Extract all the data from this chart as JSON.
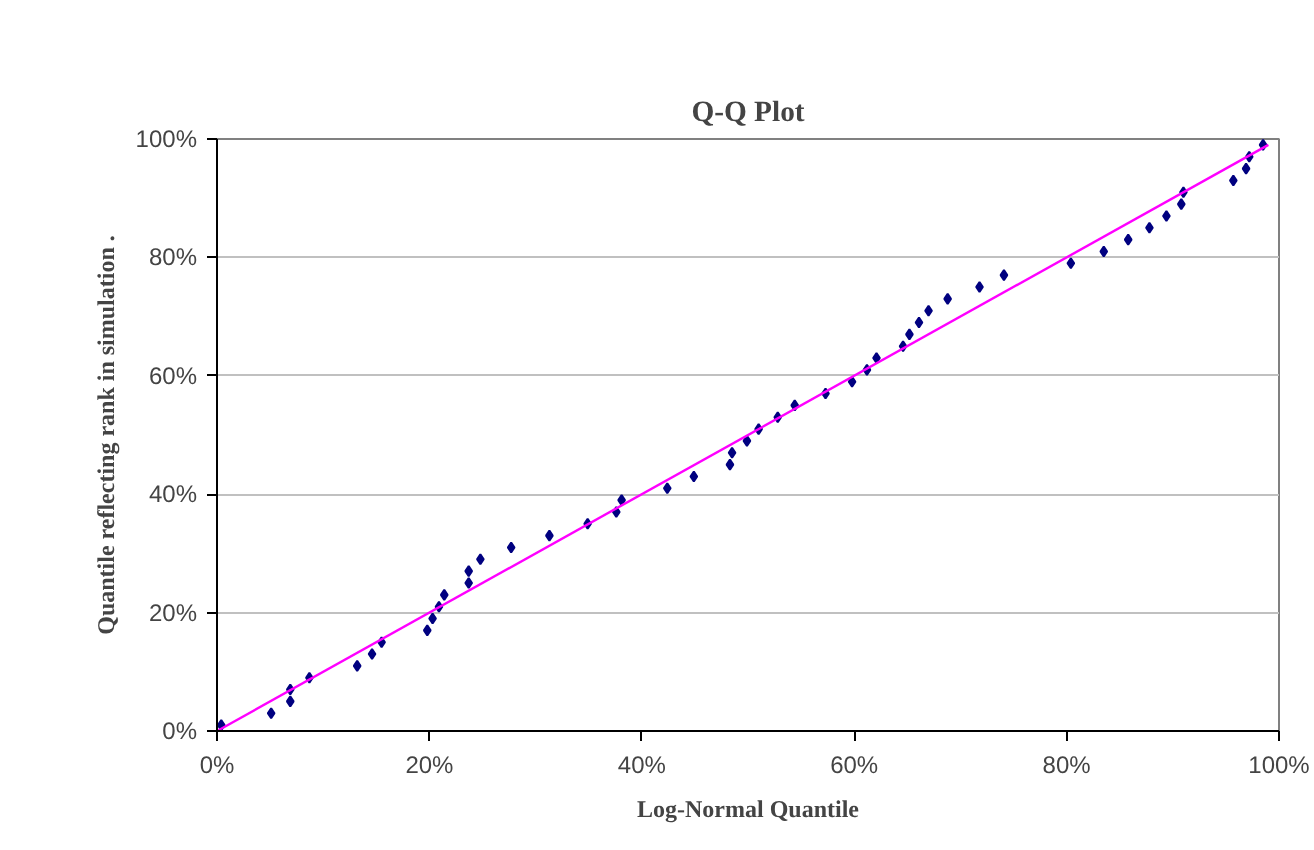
{
  "chart_data": {
    "type": "scatter",
    "title": "Q-Q Plot",
    "xlabel": "Log-Normal Quantile",
    "ylabel": "Quantile reflecting rank in simulation .",
    "series": [
      {
        "marker": "diamond",
        "color": "#000080",
        "x": [
          0.4,
          5.1,
          6.9,
          6.9,
          8.7,
          13.2,
          14.6,
          15.5,
          19.8,
          20.3,
          20.9,
          21.4,
          23.7,
          23.7,
          24.8,
          27.7,
          31.3,
          34.9,
          37.6,
          38.1,
          42.4,
          44.9,
          48.3,
          48.5,
          49.9,
          51.0,
          52.8,
          54.4,
          57.3,
          59.8,
          61.2,
          62.1,
          64.6,
          65.2,
          66.1,
          67.0,
          68.8,
          71.8,
          74.1,
          80.4,
          83.5,
          85.8,
          87.8,
          89.4,
          90.8,
          91.0,
          95.7,
          96.9,
          97.2,
          98.5
        ],
        "values": [
          1,
          3,
          5,
          7,
          9,
          11,
          13,
          15,
          17,
          19,
          21,
          23,
          25,
          27,
          29,
          31,
          33,
          35,
          37,
          39,
          41,
          43,
          45,
          47,
          49,
          51,
          53,
          55,
          57,
          59,
          61,
          63,
          65,
          67,
          69,
          71,
          73,
          75,
          77,
          79,
          81,
          83,
          85,
          87,
          89,
          91,
          93,
          95,
          97,
          99
        ]
      },
      {
        "type": "line",
        "marker": "none",
        "color": "#ff00ff",
        "x": [
          0,
          99
        ],
        "values": [
          0,
          99
        ]
      }
    ],
    "xlim": [
      0,
      100
    ],
    "ylim": [
      0,
      100
    ],
    "xticks": [
      {
        "value": 0,
        "label": "0%"
      },
      {
        "value": 20,
        "label": "20%"
      },
      {
        "value": 40,
        "label": "40%"
      },
      {
        "value": 60,
        "label": "60%"
      },
      {
        "value": 80,
        "label": "80%"
      },
      {
        "value": 100,
        "label": "100%"
      }
    ],
    "yticks": [
      {
        "value": 0,
        "label": "0%"
      },
      {
        "value": 20,
        "label": "20%"
      },
      {
        "value": 40,
        "label": "40%"
      },
      {
        "value": 60,
        "label": "60%"
      },
      {
        "value": 80,
        "label": "80%"
      },
      {
        "value": 100,
        "label": "100%"
      }
    ],
    "grid": "y"
  }
}
